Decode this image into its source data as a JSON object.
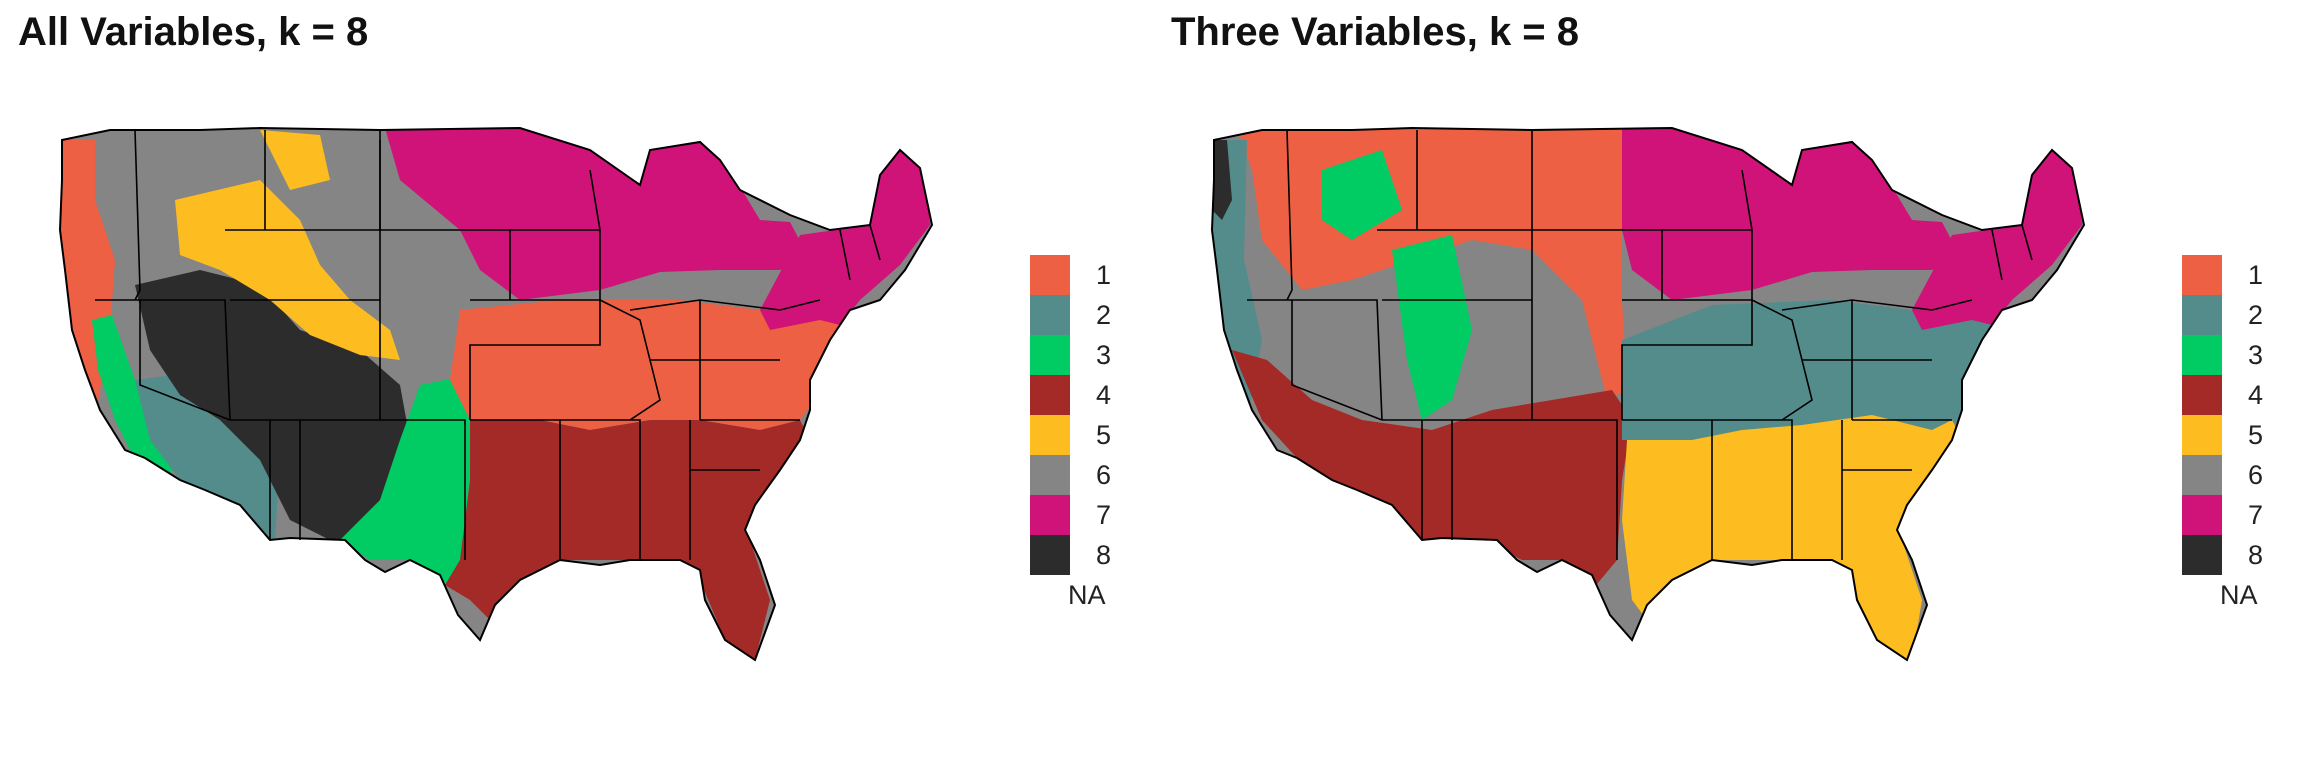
{
  "palette": {
    "1": "#EE6044",
    "2": "#548C8C",
    "3": "#00CC63",
    "4": "#A32A26",
    "5": "#FDBC20",
    "6": "#858585",
    "7": "#D01378",
    "8": "#2C2C2C"
  },
  "panels": [
    {
      "title": "All Variables, k = 8",
      "legend": {
        "labels": [
          "1",
          "2",
          "3",
          "4",
          "5",
          "6",
          "7",
          "8"
        ],
        "na_label": "NA"
      }
    },
    {
      "title": "Three Variables, k = 8",
      "legend": {
        "labels": [
          "1",
          "2",
          "3",
          "4",
          "5",
          "6",
          "7",
          "8"
        ],
        "na_label": "NA"
      }
    }
  ]
}
